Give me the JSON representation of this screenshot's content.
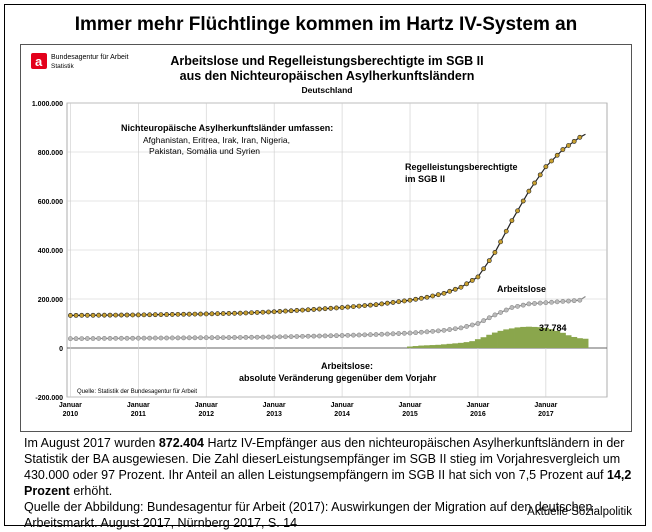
{
  "page_title": "Immer mehr Flüchtlinge kommen im Hartz IV-System an",
  "logo": {
    "name": "Bundesagentur für Arbeit",
    "sub": "Statistik",
    "color": "#e3001b"
  },
  "chart_data": {
    "type": "line",
    "title": "Arbeitslose und Regelleistungsberechtigte im SGB II",
    "subtitle": "aus den Nichteuropäischen Asylherkunftsländern",
    "region": "Deutschland",
    "ylim": [
      -200000,
      1000000
    ],
    "yticks": [
      -200000,
      0,
      200000,
      400000,
      600000,
      800000,
      1000000
    ],
    "ytick_labels": [
      "-200.000",
      "0",
      "200.000",
      "400.000",
      "600.000",
      "800.000",
      "1.000.000"
    ],
    "xticks": [
      {
        "year": 2010,
        "top": "Januar",
        "bottom": "2010"
      },
      {
        "year": 2011,
        "top": "Januar",
        "bottom": "2011"
      },
      {
        "year": 2012,
        "top": "Januar",
        "bottom": "2012"
      },
      {
        "year": 2013,
        "top": "Januar",
        "bottom": "2013"
      },
      {
        "year": 2014,
        "top": "Januar",
        "bottom": "2014"
      },
      {
        "year": 2015,
        "top": "Januar",
        "bottom": "2015"
      },
      {
        "year": 2016,
        "top": "Januar",
        "bottom": "2016"
      },
      {
        "year": 2017,
        "top": "Januar",
        "bottom": "2017"
      }
    ],
    "x_range": [
      2009.95,
      2017.9
    ],
    "series": [
      {
        "name": "Regelleistungsberechtigte im SGB II",
        "label_lines": [
          "Regelleistungsberechtigte",
          "im SGB II"
        ],
        "color": "#222222",
        "marker_color": "#c8a030",
        "x": [
          2010,
          2010.5,
          2011,
          2011.5,
          2012,
          2012.5,
          2013,
          2013.5,
          2014,
          2014.5,
          2015,
          2015.25,
          2015.5,
          2015.75,
          2016,
          2016.25,
          2016.5,
          2016.75,
          2017,
          2017.25,
          2017.5,
          2017.583
        ],
        "values": [
          133000,
          134000,
          135000,
          137000,
          139000,
          142000,
          148000,
          156000,
          165000,
          177000,
          195000,
          207000,
          223000,
          248000,
          290000,
          390000,
          520000,
          640000,
          740000,
          810000,
          860000,
          872404
        ]
      },
      {
        "name": "Arbeitslose",
        "label_lines": [
          "Arbeitslose"
        ],
        "color": "#888888",
        "marker_color": "#bbbbbb",
        "x": [
          2010,
          2010.5,
          2011,
          2011.5,
          2012,
          2012.5,
          2013,
          2013.5,
          2014,
          2014.5,
          2015,
          2015.25,
          2015.5,
          2015.75,
          2016,
          2016.25,
          2016.5,
          2016.75,
          2017,
          2017.25,
          2017.5,
          2017.583
        ],
        "values": [
          38000,
          39000,
          40000,
          41000,
          42000,
          43000,
          45000,
          48000,
          51000,
          55000,
          61000,
          66000,
          72000,
          82000,
          100000,
          135000,
          165000,
          180000,
          185000,
          190000,
          195000,
          210000
        ]
      }
    ],
    "bars": {
      "name": "Arbeitslose: absolute Veränderung gegenüber dem Vorjahr",
      "label_lines": [
        "Arbeitslose:",
        "absolute Veränderung gegenüber dem Vorjahr"
      ],
      "color": "#8aa64c",
      "x": [
        2015.0,
        2015.083,
        2015.167,
        2015.25,
        2015.333,
        2015.417,
        2015.5,
        2015.583,
        2015.667,
        2015.75,
        2015.833,
        2015.917,
        2016.0,
        2016.083,
        2016.167,
        2016.25,
        2016.333,
        2016.417,
        2016.5,
        2016.583,
        2016.667,
        2016.75,
        2016.833,
        2016.917,
        2017.0,
        2017.083,
        2017.167,
        2017.25,
        2017.333,
        2017.417,
        2017.5,
        2017.583
      ],
      "values": [
        6000,
        8000,
        10000,
        11000,
        12000,
        13000,
        15000,
        17000,
        19000,
        21000,
        24000,
        28000,
        36000,
        44000,
        54000,
        63000,
        70000,
        76000,
        80000,
        84000,
        86000,
        87000,
        86000,
        85000,
        82000,
        77000,
        70000,
        62000,
        52000,
        45000,
        40000,
        37784
      ],
      "end_label": "37.784"
    },
    "annotation": {
      "heading": "Nichteuropäische Asylherkunftsländer umfassen:",
      "lines": [
        "Afghanistan, Eritrea, Irak, Iran, Nigeria,",
        "Pakistan, Somalia und Syrien"
      ]
    },
    "source": "Quelle: Statistik der Bundesagentur für Arbeit"
  },
  "caption": {
    "part1": "Im August 2017 wurden ",
    "bold1": "872.404",
    "part2": " Hartz IV-Empfänger aus den nichteuropäischen Asylherkunftsländern in der Statistik der BA ausgewiesen. Die Zahl dieserLeistungsempfänger im SGB II stieg im Vorjahresvergleich um 430.000 oder 97 Prozent. Ihr Anteil an allen Leistungsempfängern im SGB II hat sich von 7,5 Prozent auf ",
    "bold2": "14,2 Prozent",
    "part3": " erhöht.",
    "source": "Quelle der Abbildung: Bundesagentur für Arbeit (2017): Auswirkungen der Migration auf den deutschen Arbeitsmarkt. August 2017, Nürnberg 2017, S. 14"
  },
  "footer": "Aktuelle Sozialpolitik"
}
